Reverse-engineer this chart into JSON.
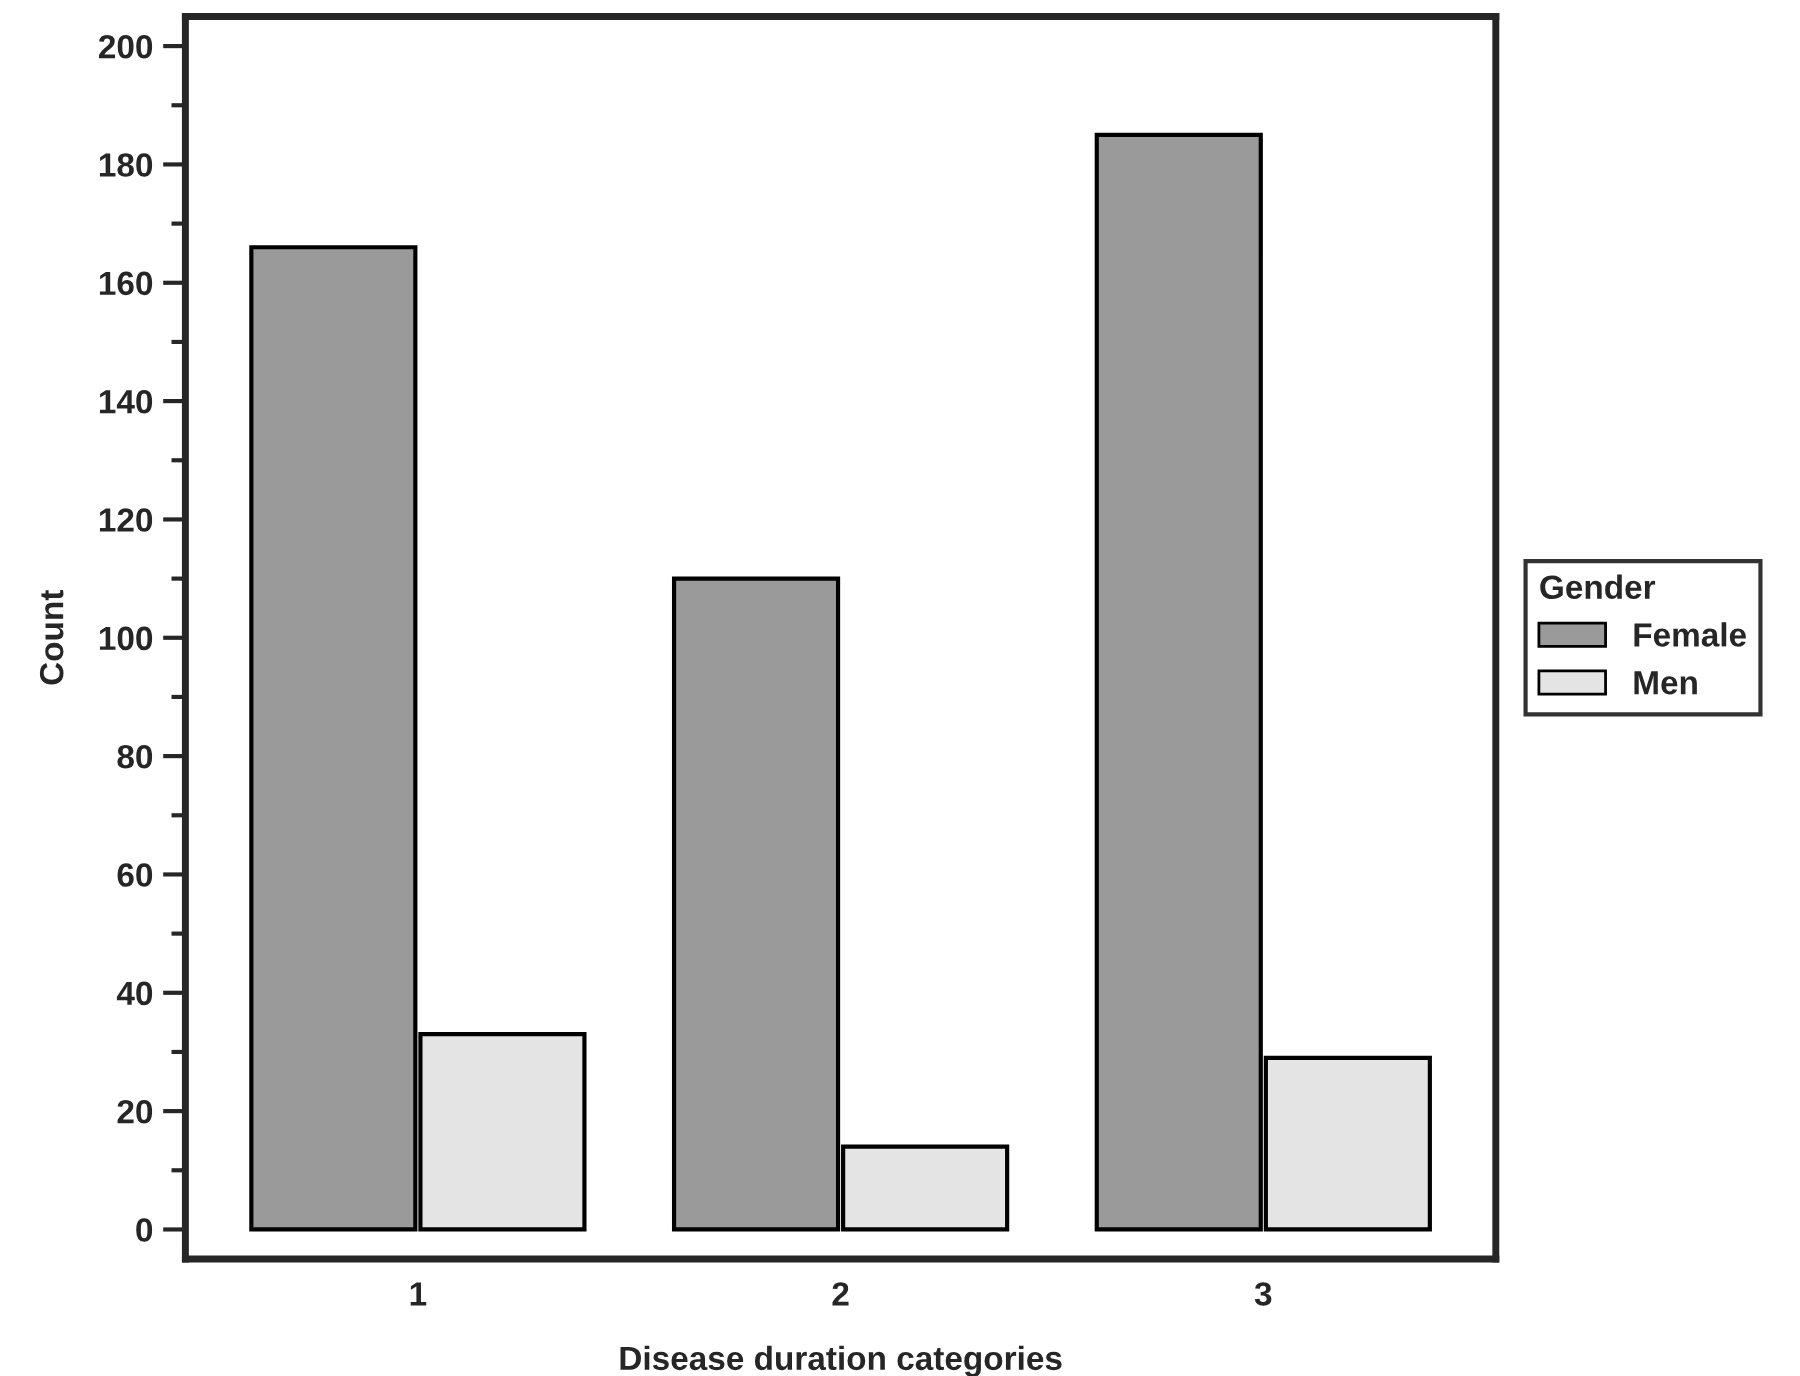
{
  "chart_data": {
    "type": "bar",
    "xlabel": "Disease duration categories",
    "ylabel": "Count",
    "categories": [
      "1",
      "2",
      "3"
    ],
    "series": [
      {
        "name": "Female",
        "color": "#9a9a9a",
        "values": [
          166,
          110,
          185
        ]
      },
      {
        "name": "Men",
        "color": "#e4e4e4",
        "values": [
          33,
          14,
          29
        ]
      }
    ],
    "legend_title": "Gender",
    "legend": "right",
    "ylim": [
      -5,
      205
    ],
    "yticks": [
      0,
      20,
      40,
      60,
      80,
      100,
      120,
      140,
      160,
      180,
      200
    ],
    "grid": false
  }
}
